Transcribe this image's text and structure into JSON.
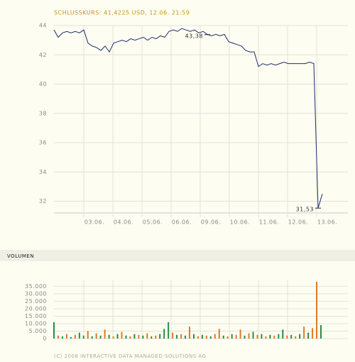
{
  "chart_data": [
    {
      "type": "line",
      "title": "SCHLUSSKURS: 41,4225 USD, 12.06. 21:59",
      "date_labels": [
        "03.06.",
        "04.06.",
        "05.06.",
        "06.06.",
        "09.06.",
        "10.06.",
        "11.06.",
        "12.06.",
        "13.06."
      ],
      "values": [
        43.7,
        43.2,
        43.5,
        43.6,
        43.5,
        43.6,
        43.5,
        43.7,
        42.8,
        42.6,
        42.5,
        42.3,
        42.6,
        42.2,
        42.8,
        42.9,
        43.0,
        42.9,
        43.1,
        43.0,
        43.1,
        43.2,
        43.0,
        43.2,
        43.1,
        43.3,
        43.2,
        43.6,
        43.7,
        43.6,
        43.8,
        43.7,
        43.6,
        43.7,
        43.5,
        43.6,
        43.4,
        43.3,
        43.4,
        43.3,
        43.4,
        42.9,
        42.8,
        42.7,
        42.6,
        42.3,
        42.2,
        42.2,
        41.2,
        41.4,
        41.3,
        41.4,
        41.3,
        41.4,
        41.5,
        41.4,
        41.4,
        41.4,
        41.4,
        41.4,
        41.5,
        41.4,
        31.53,
        32.5
      ],
      "color": "#1c2c6c",
      "ylim": [
        31.2,
        44
      ],
      "yticks": [
        32,
        34,
        36,
        38,
        40,
        42,
        44
      ],
      "grid": true,
      "annotations": [
        {
          "value": 43.38,
          "label": "43,38"
        },
        {
          "value": 31.53,
          "label": "31,53"
        }
      ]
    },
    {
      "type": "bar",
      "title": "VOLUMEN",
      "values": [
        11000,
        2000,
        1500,
        3000,
        1000,
        2500,
        4000,
        2000,
        5000,
        1500,
        3500,
        2000,
        6000,
        2500,
        1500,
        3000,
        4500,
        2000,
        1500,
        3000,
        2500,
        2000,
        3500,
        1500,
        2000,
        3000,
        6500,
        11000,
        4000,
        2500,
        3000,
        2000,
        8000,
        3000,
        1500,
        2500,
        2000,
        1500,
        3000,
        6500,
        2000,
        1500,
        3000,
        2500,
        6000,
        2000,
        3500,
        4500,
        2500,
        3000,
        1500,
        2500,
        2000,
        3000,
        6000,
        2000,
        2500,
        1500,
        3000,
        8000,
        4000,
        7000,
        38000,
        9000
      ],
      "colors": [
        "#2a8a4a",
        "#e07a20",
        "#2a8a4a",
        "#e07a20",
        "#2a8a4a",
        "#e07a20",
        "#2a8a4a",
        "#2a8a4a",
        "#e07a20",
        "#2a8a4a",
        "#e07a20",
        "#2a8a4a",
        "#e07a20",
        "#2a8a4a",
        "#e07a20",
        "#2a8a4a",
        "#e07a20",
        "#2a8a4a",
        "#e07a20",
        "#2a8a4a",
        "#e07a20",
        "#2a8a4a",
        "#e07a20",
        "#2a8a4a",
        "#e07a20",
        "#2a8a4a",
        "#2a8a4a",
        "#2a8a4a",
        "#e07a20",
        "#2a8a4a",
        "#e07a20",
        "#2a8a4a",
        "#e07a20",
        "#2a8a4a",
        "#e07a20",
        "#2a8a4a",
        "#e07a20",
        "#2a8a4a",
        "#e07a20",
        "#e07a20",
        "#2a8a4a",
        "#e07a20",
        "#2a8a4a",
        "#e07a20",
        "#e07a20",
        "#2a8a4a",
        "#e07a20",
        "#2a8a4a",
        "#e07a20",
        "#2a8a4a",
        "#e07a20",
        "#2a8a4a",
        "#e07a20",
        "#2a8a4a",
        "#2a8a4a",
        "#e07a20",
        "#2a8a4a",
        "#e07a20",
        "#2a8a4a",
        "#e07a20",
        "#2a8a4a",
        "#e07a20",
        "#e07a20",
        "#2a8a4a"
      ],
      "ylim": [
        0,
        39000
      ],
      "yticks": [
        0,
        {
          "value": 5000,
          "label": "5.000"
        },
        {
          "value": 10000,
          "label": "10.000"
        },
        {
          "value": 15000,
          "label": "15.000"
        },
        {
          "value": 20000,
          "label": "20.000"
        },
        {
          "value": 25000,
          "label": "25.000"
        },
        {
          "value": 30000,
          "label": "30.000"
        },
        {
          "value": 35000,
          "label": "35.000"
        }
      ],
      "grid": true
    }
  ],
  "footer": "(C) 2008 INTERACTIVE DATA MANAGED SOLUTIONS AG"
}
